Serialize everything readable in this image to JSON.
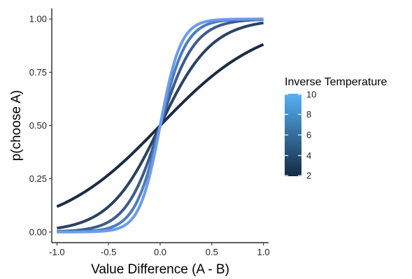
{
  "chart_data": {
    "type": "line",
    "xlabel": "Value Difference (A - B)",
    "ylabel": "p(choose A)",
    "xlim": [
      -1.05,
      1.05
    ],
    "ylim": [
      -0.05,
      1.05
    ],
    "x_ticks": [
      -1.0,
      -0.5,
      0.0,
      0.5,
      1.0
    ],
    "x_tick_labels": [
      "-1.0",
      "-0.5",
      "0.0",
      "0.5",
      "1.0"
    ],
    "y_ticks": [
      0.0,
      0.25,
      0.5,
      0.75,
      1.0
    ],
    "y_tick_labels": [
      "0.00",
      "0.25",
      "0.50",
      "0.75",
      "1.00"
    ],
    "x_range": [
      -1.0,
      1.0
    ],
    "grid": false,
    "legend": {
      "title": "Inverse Temperature",
      "placement": "right",
      "kind": "colorbar",
      "range": [
        2,
        10
      ],
      "ticks": [
        2,
        4,
        6,
        8,
        10
      ],
      "tick_labels": [
        "2",
        "4",
        "6",
        "8",
        "10"
      ],
      "color_low": "#132B43",
      "color_high": "#56B1F7"
    },
    "series": [
      {
        "inverse_temperature": 2,
        "color": "#1a2b44",
        "values": [
          0.12,
          0.5,
          0.88
        ]
      },
      {
        "inverse_temperature": 4,
        "color": "#2a4263",
        "values": [
          0.02,
          0.5,
          0.98
        ]
      },
      {
        "inverse_temperature": 6,
        "color": "#3c5d8c",
        "values": [
          0.0,
          0.5,
          1.0
        ]
      },
      {
        "inverse_temperature": 8,
        "color": "#4d7cbd",
        "values": [
          0.0,
          0.5,
          1.0
        ]
      },
      {
        "inverse_temperature": 10,
        "color": "#6b9cec",
        "values": [
          0.0,
          0.5,
          1.0
        ]
      }
    ]
  }
}
